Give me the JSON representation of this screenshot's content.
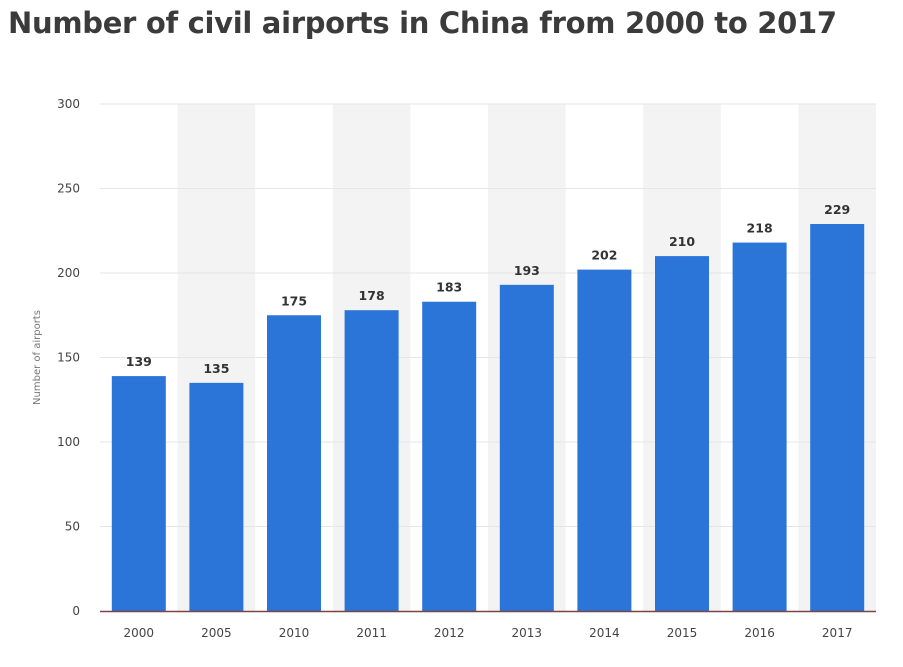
{
  "title": "Number of civil airports in China from 2000 to 2017",
  "colors": {
    "bar": "#2b75d9",
    "band": "#f3f3f3",
    "grid": "#e6e6e6",
    "axis": "#7a4545"
  },
  "chart_data": {
    "type": "bar",
    "title": "Number of civil airports in China from 2000 to 2017",
    "xlabel": "",
    "ylabel": "Number of airports",
    "categories": [
      "2000",
      "2005",
      "2010",
      "2011",
      "2012",
      "2013",
      "2014",
      "2015",
      "2016",
      "2017"
    ],
    "values": [
      139,
      135,
      175,
      178,
      183,
      193,
      202,
      210,
      218,
      229
    ],
    "ylim": [
      0,
      300
    ],
    "yticks": [
      0,
      50,
      100,
      150,
      200,
      250,
      300
    ],
    "grid": true,
    "data_labels": true
  }
}
